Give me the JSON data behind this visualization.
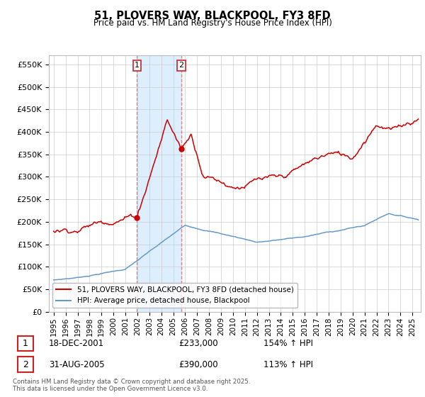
{
  "title": "51, PLOVERS WAY, BLACKPOOL, FY3 8FD",
  "subtitle": "Price paid vs. HM Land Registry's House Price Index (HPI)",
  "legend_line1": "51, PLOVERS WAY, BLACKPOOL, FY3 8FD (detached house)",
  "legend_line2": "HPI: Average price, detached house, Blackpool",
  "sale1_label": "1",
  "sale1_date": "18-DEC-2001",
  "sale1_price": "£233,000",
  "sale1_hpi": "154% ↑ HPI",
  "sale1_year": 2001.97,
  "sale1_value": 233000,
  "sale2_label": "2",
  "sale2_date": "31-AUG-2005",
  "sale2_price": "£390,000",
  "sale2_hpi": "113% ↑ HPI",
  "sale2_year": 2005.67,
  "sale2_value": 390000,
  "hpi_color": "#6699cc",
  "price_color": "#cc0000",
  "vline_color": "#e08080",
  "shade_color": "#ddeeff",
  "ylim": [
    0,
    570000
  ],
  "yticks": [
    0,
    50000,
    100000,
    150000,
    200000,
    250000,
    300000,
    350000,
    400000,
    450000,
    500000,
    550000
  ],
  "background_color": "#ffffff",
  "grid_color": "#cccccc",
  "footer": "Contains HM Land Registry data © Crown copyright and database right 2025.\nThis data is licensed under the Open Government Licence v3.0."
}
